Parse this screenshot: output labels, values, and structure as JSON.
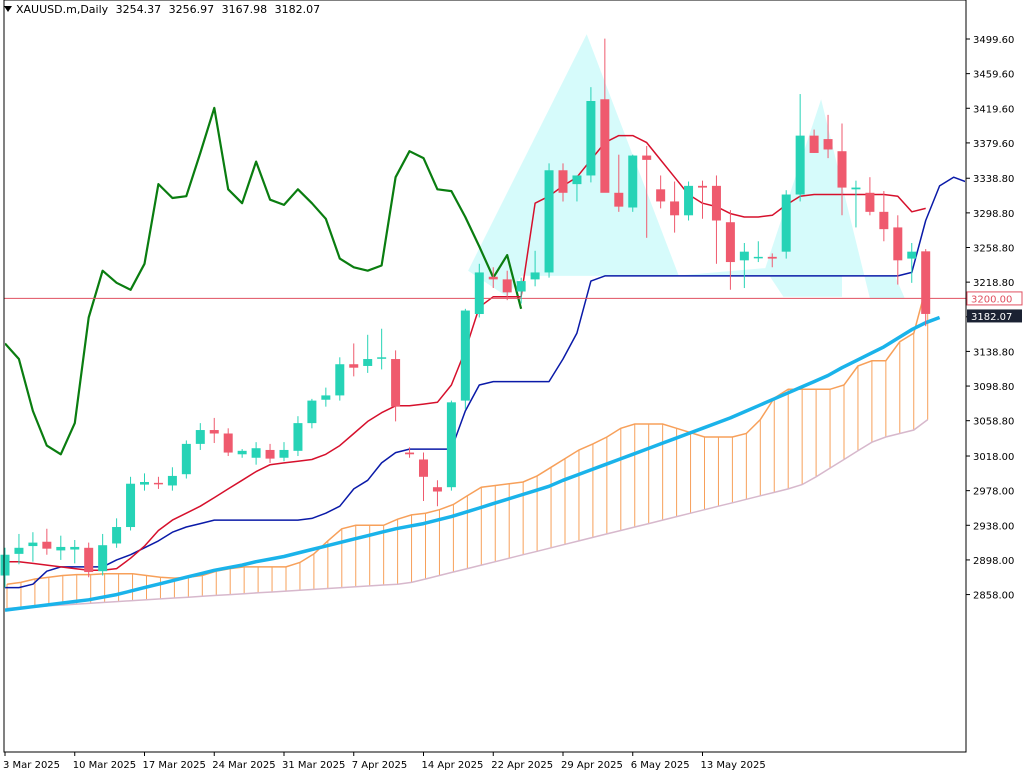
{
  "header": {
    "symbol": "XAUUSD.m,Daily",
    "open": "3254.37",
    "high": "3256.97",
    "low": "3167.98",
    "close": "3182.07"
  },
  "colors": {
    "bull": "#26d3b6",
    "bear": "#ef5a6e",
    "tenkan": "#d6102c",
    "kijun": "#0a1aa8",
    "chikou": "#0a7d10",
    "ma": "#1ab3ea",
    "span_a": "#f7a05a",
    "span_b": "#d7b8cc",
    "hs_fill": "#d4fbfb",
    "hline": "#e05060",
    "axis": "#000000",
    "price_box_bg": "#1b2233"
  },
  "chart_data": {
    "type": "candlestick",
    "title": "XAUUSD.m,Daily",
    "ylim": [
      2845,
      3525
    ],
    "yticks": [
      "3499.60",
      "3459.60",
      "3419.60",
      "3379.60",
      "3338.80",
      "3298.80",
      "3258.80",
      "3218.80",
      "3178.80",
      "3138.80",
      "3098.80",
      "3058.80",
      "3018.00",
      "2978.00",
      "2938.00",
      "2898.00",
      "2858.00"
    ],
    "xticks": [
      {
        "index": 0,
        "label": "3 Mar 2025"
      },
      {
        "index": 5,
        "label": "10 Mar 2025"
      },
      {
        "index": 10,
        "label": "17 Mar 2025"
      },
      {
        "index": 15,
        "label": "24 Mar 2025"
      },
      {
        "index": 20,
        "label": "31 Mar 2025"
      },
      {
        "index": 25,
        "label": "7 Apr 2025"
      },
      {
        "index": 30,
        "label": "14 Apr 2025"
      },
      {
        "index": 35,
        "label": "22 Apr 2025"
      },
      {
        "index": 40,
        "label": "29 Apr 2025"
      },
      {
        "index": 45,
        "label": "6 May 2025"
      },
      {
        "index": 50,
        "label": "13 May 2025"
      }
    ],
    "horizontal_line": {
      "value": 3200.0,
      "label": "3200.00"
    },
    "current_price": {
      "value": 3182.07,
      "label": "3182.07"
    },
    "candles": [
      [
        2880,
        2912,
        2866,
        2904
      ],
      [
        2905,
        2928,
        2893,
        2912
      ],
      [
        2914,
        2930,
        2896,
        2918
      ],
      [
        2919,
        2934,
        2904,
        2911
      ],
      [
        2909,
        2926,
        2898,
        2913
      ],
      [
        2910,
        2921,
        2894,
        2913
      ],
      [
        2912,
        2918,
        2878,
        2884
      ],
      [
        2885,
        2928,
        2880,
        2915
      ],
      [
        2917,
        2946,
        2912,
        2936
      ],
      [
        2936,
        2994,
        2932,
        2986
      ],
      [
        2985,
        2998,
        2978,
        2988
      ],
      [
        2987,
        2994,
        2980,
        2986
      ],
      [
        2984,
        3005,
        2978,
        2995
      ],
      [
        2997,
        3036,
        2992,
        3032
      ],
      [
        3032,
        3056,
        3025,
        3048
      ],
      [
        3048,
        3062,
        3033,
        3044
      ],
      [
        3044,
        3050,
        3018,
        3022
      ],
      [
        3020,
        3026,
        3016,
        3024
      ],
      [
        3016,
        3034,
        3008,
        3027
      ],
      [
        3025,
        3032,
        3010,
        3015
      ],
      [
        3016,
        3034,
        3012,
        3025
      ],
      [
        3024,
        3064,
        3018,
        3056
      ],
      [
        3056,
        3084,
        3050,
        3082
      ],
      [
        3083,
        3097,
        3075,
        3088
      ],
      [
        3088,
        3132,
        3082,
        3124
      ],
      [
        3124,
        3148,
        3110,
        3120
      ],
      [
        3122,
        3158,
        3114,
        3130
      ],
      [
        3131,
        3165,
        3118,
        3132
      ],
      [
        3130,
        3140,
        3058,
        3075
      ],
      [
        3022,
        3028,
        3016,
        3020
      ],
      [
        3014,
        3022,
        2966,
        2994
      ],
      [
        2982,
        2990,
        2960,
        2977
      ],
      [
        2982,
        3082,
        2978,
        3080
      ],
      [
        3082,
        3188,
        3072,
        3186
      ],
      [
        3182,
        3240,
        3178,
        3230
      ],
      [
        3225,
        3236,
        3212,
        3222
      ],
      [
        3222,
        3232,
        3198,
        3207
      ],
      [
        3208,
        3224,
        3194,
        3220
      ],
      [
        3222,
        3255,
        3214,
        3230
      ],
      [
        3230,
        3356,
        3224,
        3348
      ],
      [
        3348,
        3356,
        3312,
        3322
      ],
      [
        3332,
        3342,
        3312,
        3342
      ],
      [
        3342,
        3444,
        3334,
        3428
      ],
      [
        3430,
        3500,
        3324,
        3322
      ],
      [
        3322,
        3366,
        3300,
        3306
      ],
      [
        3305,
        3366,
        3300,
        3365
      ],
      [
        3365,
        3376,
        3270,
        3360
      ],
      [
        3326,
        3342,
        3304,
        3312
      ],
      [
        3312,
        3335,
        3276,
        3296
      ],
      [
        3296,
        3335,
        3290,
        3330
      ],
      [
        3330,
        3336,
        3292,
        3328
      ],
      [
        3330,
        3342,
        3240,
        3290
      ],
      [
        3288,
        3302,
        3210,
        3242
      ],
      [
        3244,
        3264,
        3212,
        3254
      ],
      [
        3248,
        3266,
        3242,
        3248
      ],
      [
        3248,
        3252,
        3236,
        3246
      ],
      [
        3254,
        3325,
        3246,
        3320
      ],
      [
        3320,
        3436,
        3312,
        3388
      ],
      [
        3388,
        3395,
        3368,
        3368
      ],
      [
        3384,
        3412,
        3362,
        3372
      ],
      [
        3370,
        3402,
        3296,
        3328
      ],
      [
        3326,
        3336,
        3282,
        3328
      ],
      [
        3322,
        3340,
        3296,
        3300
      ],
      [
        3300,
        3324,
        3266,
        3280
      ],
      [
        3282,
        3296,
        3216,
        3244
      ],
      [
        3246,
        3264,
        3218,
        3254
      ],
      [
        3254.37,
        3256.97,
        3167.98,
        3182.07
      ]
    ],
    "ma_values": [
      2840,
      2842,
      2844,
      2846,
      2848,
      2850,
      2852,
      2855,
      2858,
      2862,
      2866,
      2870,
      2874,
      2878,
      2882,
      2886,
      2889,
      2892,
      2896,
      2899,
      2902,
      2906,
      2910,
      2914,
      2918,
      2922,
      2926,
      2930,
      2934,
      2937,
      2940,
      2944,
      2948,
      2953,
      2958,
      2963,
      2968,
      2973,
      2978,
      2983,
      2990,
      2996,
      3002,
      3008,
      3014,
      3020,
      3026,
      3032,
      3038,
      3044,
      3050,
      3056,
      3062,
      3069,
      3076,
      3083,
      3090,
      3097,
      3104,
      3111,
      3120,
      3128,
      3136,
      3144,
      3154,
      3164,
      3172,
      3178
    ],
    "tenkan_values": [
      2896,
      2896,
      2894,
      2892,
      2890,
      2888,
      2886,
      2886,
      2888,
      2900,
      2914,
      2932,
      2944,
      2952,
      2960,
      2970,
      2980,
      2990,
      3000,
      3008,
      3010,
      3012,
      3014,
      3020,
      3030,
      3044,
      3058,
      3068,
      3076,
      3076,
      3078,
      3080,
      3100,
      3140,
      3190,
      3202,
      3202,
      3202,
      3310,
      3318,
      3330,
      3340,
      3360,
      3380,
      3388,
      3388,
      3380,
      3360,
      3340,
      3320,
      3310,
      3306,
      3298,
      3294,
      3294,
      3296,
      3308,
      3318,
      3320,
      3320,
      3320,
      3320,
      3320,
      3320,
      3318,
      3300,
      3304
    ],
    "kijun_values": [
      2866,
      2866,
      2870,
      2885,
      2890,
      2890,
      2890,
      2890,
      2898,
      2904,
      2912,
      2920,
      2930,
      2936,
      2940,
      2944,
      2944,
      2944,
      2944,
      2944,
      2944,
      2944,
      2946,
      2952,
      2960,
      2980,
      2990,
      3010,
      3022,
      3026,
      3026,
      3026,
      3026,
      3070,
      3100,
      3104,
      3104,
      3104,
      3104,
      3104,
      3130,
      3160,
      3220,
      3226,
      3226,
      3226,
      3226,
      3226,
      3226,
      3226,
      3226,
      3226,
      3226,
      3226,
      3226,
      3226,
      3226,
      3226,
      3226,
      3226,
      3226,
      3226,
      3226,
      3226,
      3226,
      3230,
      3290,
      3330,
      3340,
      3334
    ],
    "span_a_values": [
      2870,
      2872,
      2876,
      2878,
      2880,
      2881,
      2881,
      2882,
      2882,
      2882,
      2880,
      2878,
      2877,
      2878,
      2880,
      2885,
      2888,
      2890,
      2890,
      2890,
      2890,
      2895,
      2905,
      2920,
      2934,
      2938,
      2938,
      2938,
      2945,
      2950,
      2952,
      2956,
      2962,
      2972,
      2982,
      2984,
      2986,
      2988,
      2995,
      3005,
      3015,
      3025,
      3032,
      3040,
      3050,
      3055,
      3055,
      3055,
      3050,
      3045,
      3040,
      3040,
      3040,
      3044,
      3060,
      3085,
      3095,
      3095,
      3095,
      3095,
      3100,
      3122,
      3128,
      3128,
      3150,
      3160,
      3220
    ],
    "span_b_values": [
      2842,
      2843,
      2844,
      2845,
      2846,
      2847,
      2848,
      2849,
      2850,
      2851,
      2852,
      2853,
      2854,
      2855,
      2856,
      2857,
      2858,
      2859,
      2860,
      2861,
      2862,
      2863,
      2864,
      2865,
      2866,
      2867,
      2868,
      2869,
      2870,
      2872,
      2876,
      2880,
      2884,
      2888,
      2892,
      2896,
      2900,
      2904,
      2908,
      2912,
      2916,
      2920,
      2924,
      2928,
      2932,
      2936,
      2940,
      2944,
      2948,
      2952,
      2956,
      2960,
      2964,
      2968,
      2972,
      2976,
      2980,
      2985,
      2994,
      3004,
      3014,
      3024,
      3034,
      3040,
      3044,
      3048,
      3060,
      3080,
      3098,
      3100,
      3130
    ],
    "chikou_values": [
      3148,
      3130,
      3070,
      3030,
      3020,
      3056,
      3178,
      3232,
      3218,
      3210,
      3240,
      3332,
      3316,
      3318,
      3368,
      3420,
      3326,
      3310,
      3358,
      3314,
      3308,
      3326,
      3310,
      3292,
      3246,
      3236,
      3232,
      3238,
      3340,
      3370,
      3362,
      3326,
      3324,
      3294,
      3260,
      3224,
      3250,
      3188
    ]
  }
}
